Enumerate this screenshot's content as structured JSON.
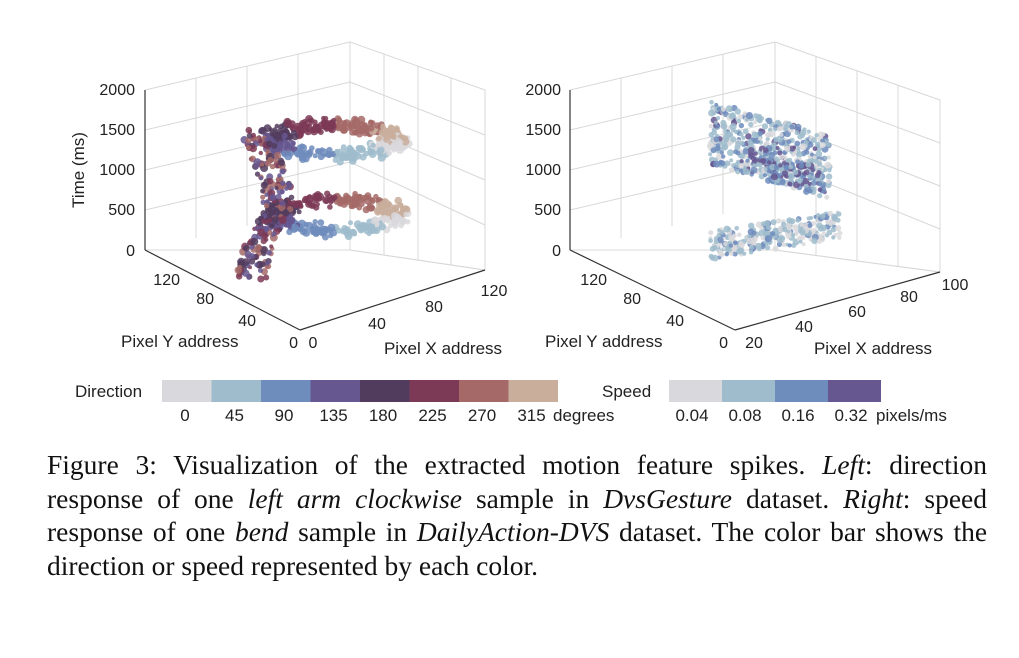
{
  "chart_data": [
    {
      "type": "scatter",
      "panel": "left",
      "zlabel": "Time (ms)",
      "ylabel": "Pixel Y address",
      "xlabel": "Pixel X address",
      "z_ticks": [
        "0",
        "500",
        "1000",
        "1500",
        "2000"
      ],
      "y_ticks": [
        "0",
        "40",
        "80",
        "120"
      ],
      "x_ticks": [
        "0",
        "40",
        "80",
        "120"
      ],
      "zlim": [
        0,
        2000
      ],
      "ylim": [
        0,
        128
      ],
      "xlim": [
        0,
        128
      ],
      "color_by": "Direction",
      "bands": [
        {
          "time_ms": 1400,
          "x_range": [
            20,
            110
          ],
          "y_range": [
            20,
            120
          ]
        },
        {
          "time_ms": 600,
          "x_range": [
            20,
            110
          ],
          "y_range": [
            20,
            120
          ]
        }
      ]
    },
    {
      "type": "scatter",
      "panel": "right",
      "zlabel": "",
      "ylabel": "Pixel Y address",
      "xlabel": "Pixel X address",
      "z_ticks": [
        "0",
        "500",
        "1000",
        "1500",
        "2000"
      ],
      "y_ticks": [
        "0",
        "40",
        "80",
        "120"
      ],
      "x_ticks": [
        "20",
        "40",
        "60",
        "80",
        "100"
      ],
      "zlim": [
        0,
        2000
      ],
      "ylim": [
        0,
        128
      ],
      "xlim": [
        20,
        100
      ],
      "color_by": "Speed",
      "bands": [
        {
          "time_ms": 1100,
          "x_range": [
            35,
            85
          ],
          "y_range": [
            30,
            110
          ]
        },
        {
          "time_ms": 450,
          "x_range": [
            30,
            95
          ],
          "y_range": [
            20,
            90
          ]
        }
      ]
    }
  ],
  "legend": {
    "direction": {
      "title": "Direction",
      "unit": "degrees",
      "labels": [
        "0",
        "45",
        "90",
        "135",
        "180",
        "225",
        "270",
        "315"
      ],
      "colors": [
        "#d9d8dc",
        "#9fbccc",
        "#6e8cbc",
        "#665791",
        "#523c5e",
        "#7c3a56",
        "#a56a67",
        "#c9ae9c"
      ]
    },
    "speed": {
      "title": "Speed",
      "unit": "pixels/ms",
      "labels": [
        "0.04",
        "0.08",
        "0.16",
        "0.32"
      ],
      "colors": [
        "#d9d8dc",
        "#9fbccc",
        "#6e8cbc",
        "#665791"
      ]
    }
  },
  "caption": {
    "label": "Figure 3: Visualization of the extracted motion feature spikes.",
    "left_label": "Left",
    "left_1": ": direction response of one",
    "left_sample": "left arm clockwise",
    "left_2": "sample in",
    "left_dataset": "DvsGesture",
    "left_3": "dataset.",
    "right_label": "Right",
    "right_1": ":  speed response of one",
    "right_sample": "bend",
    "right_2": "sample in",
    "right_dataset": "DailyAction-DVS",
    "right_3": "dataset. The color bar shows the direction or speed represented by each color."
  }
}
